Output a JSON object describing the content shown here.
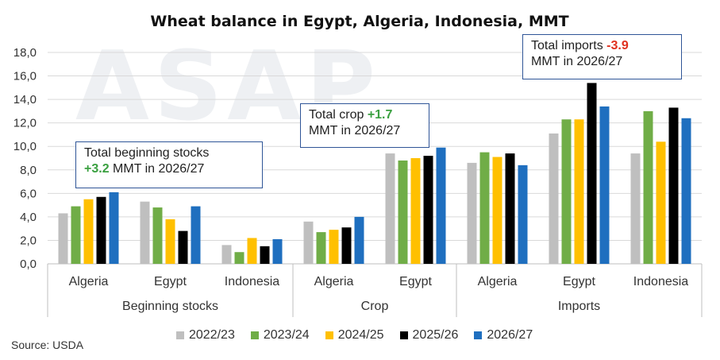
{
  "chart_data": {
    "type": "bar",
    "title": "Wheat balance in Egypt, Algeria, Indonesia, MMT",
    "watermark": "ASAP",
    "ylim": [
      0,
      18
    ],
    "yticks": [
      "0,0",
      "2,0",
      "4,0",
      "6,0",
      "8,0",
      "10,0",
      "12,0",
      "14,0",
      "16,0",
      "18,0"
    ],
    "ytick_values": [
      0,
      2,
      4,
      6,
      8,
      10,
      12,
      14,
      16,
      18
    ],
    "grid": true,
    "groups": [
      {
        "label": "Beginning stocks",
        "categories": [
          "Algeria",
          "Egypt",
          "Indonesia"
        ]
      },
      {
        "label": "Crop",
        "categories": [
          "Algeria",
          "Egypt"
        ]
      },
      {
        "label": "Imports",
        "categories": [
          "Algeria",
          "Egypt",
          "Indonesia"
        ]
      }
    ],
    "series": [
      {
        "name": "2022/23",
        "color": "#bfbfbf",
        "values": [
          4.3,
          5.3,
          1.6,
          3.6,
          9.4,
          8.6,
          11.1,
          9.4
        ]
      },
      {
        "name": "2023/24",
        "color": "#70ad47",
        "values": [
          4.9,
          4.8,
          1.0,
          2.7,
          8.8,
          9.5,
          12.3,
          13.0
        ]
      },
      {
        "name": "2024/25",
        "color": "#ffc000",
        "values": [
          5.5,
          3.8,
          2.2,
          2.9,
          9.0,
          9.1,
          12.3,
          10.4
        ]
      },
      {
        "name": "2025/26",
        "color": "#000000",
        "values": [
          5.7,
          2.8,
          1.5,
          3.1,
          9.2,
          9.4,
          15.4,
          13.3
        ]
      },
      {
        "name": "2026/27",
        "color": "#1f6fbf",
        "values": [
          6.1,
          4.9,
          2.1,
          4.0,
          9.9,
          8.4,
          13.4,
          12.4
        ]
      }
    ]
  },
  "annotations": {
    "stocks": {
      "text1": "Total beginning stocks",
      "value": "+3.2",
      "text2": " MMT in 2026/27"
    },
    "crop": {
      "text1": "Total crop ",
      "value": "+1.7",
      "text2": "MMT in 2026/27"
    },
    "imports": {
      "text1": "Total imports ",
      "value": "-3.9",
      "text2": "MMT in 2026/27"
    }
  },
  "source": "Source: USDA"
}
